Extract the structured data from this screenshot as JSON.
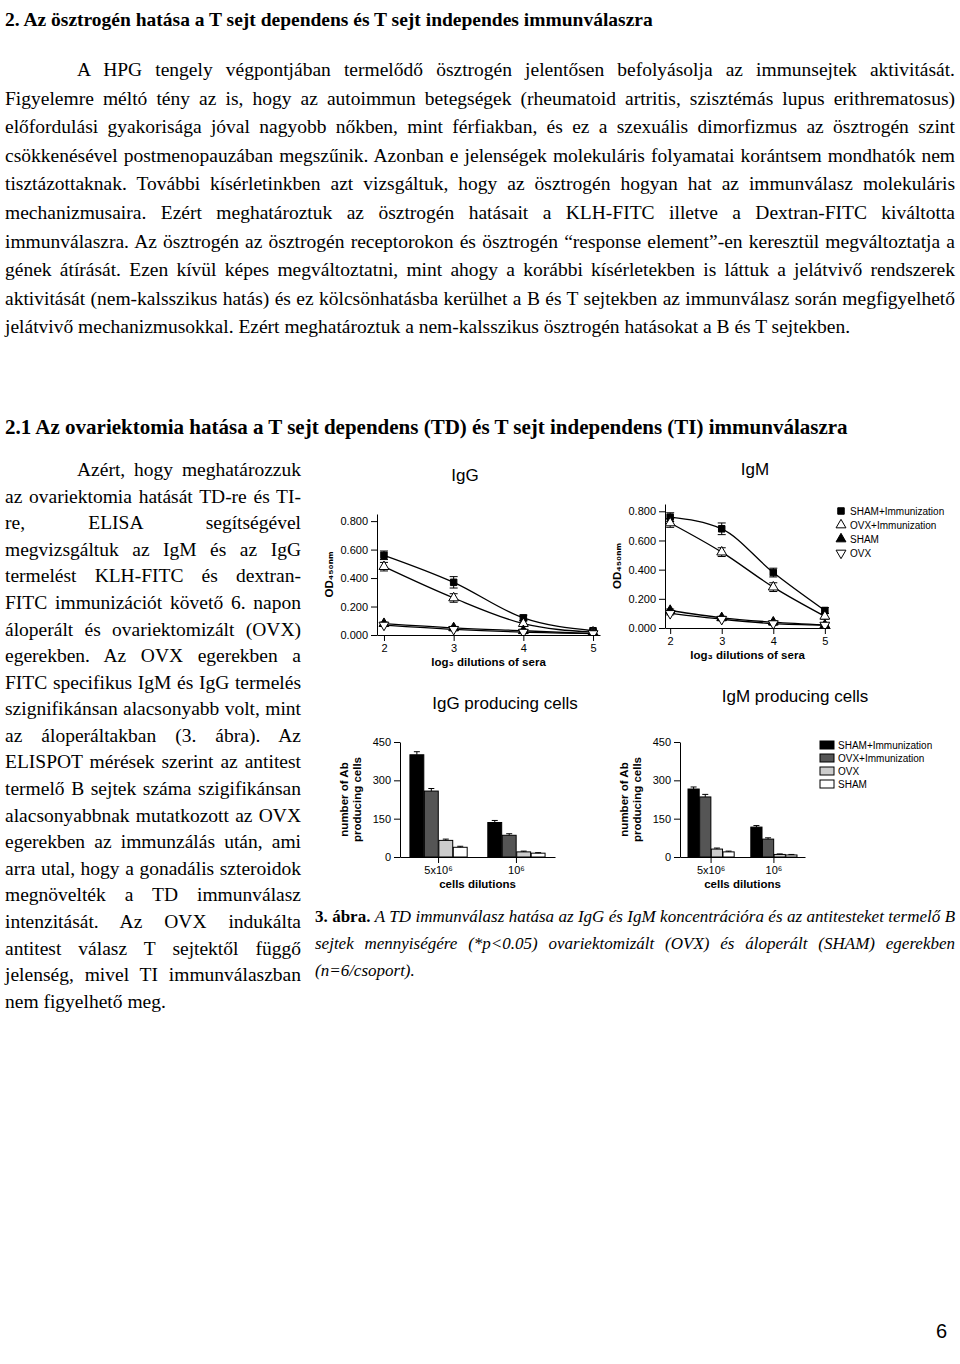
{
  "page": {
    "heading": "2. Az ösztrogén hatása a T sejt dependens és T sejt independes immunválaszra",
    "intro": "A HPG tengely végpontjában termelődő ösztrogén jelentősen befolyásolja az immunsejtek aktivitását. Figyelemre méltó tény az is, hogy az autoimmun betegségek (rheumatoid artritis, szisztémás lupus erithrematosus) előfordulási gyakorisága jóval nagyobb nőkben, mint férfiakban, és ez a szexuális dimorfizmus az ösztrogén szint csökkenésével postmenopauzában megszűnik. Azonban e jelenségek molekuláris folyamatai korántsem mondhatók nem tisztázottaknak. További kísérletinkben azt vizsgáltuk, hogy az ösztrogén hogyan hat az immunválasz molekuláris mechanizmusaira. Ezért meghatároztuk az ösztrogén hatásait a KLH-FITC illetve a Dextran-FITC kiváltotta immunválaszra. Az ösztrogén az ösztrogén receptorokon és ösztrogén “response element”-en keresztül megváltoztatja a gének átírását. Ezen kívül képes megváltoztatni, mint ahogy a korábbi kísérletekben is láttuk a jelátvivő rendszerek aktivitását (nem-kalsszikus hatás) és ez kölcsönhatásba kerülhet a B és T sejtekben az immunválasz során megfigyelhető jelátvivő mechanizmusokkal. Ezért meghatároztuk a nem-kalsszikus ösztrogén hatásokat a B és T sejtekben.",
    "section_heading": "2.1 Az ovariektomia hatása a T sejt dependens (TD) és T sejt independens (TI) immunválaszra",
    "body": "Azért, hogy meghatározzuk az ovariektomia hatását TD-re és TI-re, ELISA segítségével megvizsgáltuk az IgM és az IgG termelést KLH-FITC és dextran-FITC immunizációt követő 6. napon áloperált és ovariektomizált (OVX) egerekben. Az OVX egerekben a FITC specifikus IgM és IgG termelés szignifikánsan alacsonyabb volt, mint az áloperáltakban (3. ábra). Az ELISPOT mérések szerint az antitest termelő B sejtek száma szigifikánsan alacsonyabbnak mutatkozott az OVX egerekben az immunzálás után, ami arra utal, hogy a gonadális szteroidok megnövelték a TD immunválasz intenzitását. Az OVX indukálta antitest válasz T sejtektől függő jelenség, mivel TI immunválaszban nem figyelhető meg.",
    "page_number": 6
  },
  "figure": {
    "caption_label": "3. ábra.",
    "caption": "A TD immunválasz hatása az IgG és IgM koncentrációra és az antitesteket termelő B sejtek mennyiségére (*p<0.05) ovariektomizált (OVX) és áloperált (SHAM) egerekben (n=6/csoport)."
  },
  "chart_data": [
    {
      "type": "line",
      "title": "IgG",
      "x_label": "log₃ dilutions of sera",
      "y_label": "OD₄₅₀ₙₘ",
      "x": [
        2,
        3,
        4,
        5
      ],
      "xlim": [
        1.9,
        5.1
      ],
      "xticks": [
        2,
        3,
        4,
        5
      ],
      "ylim": [
        0,
        0.85
      ],
      "yticks": [
        {
          "value": 0,
          "label": "0.000"
        },
        {
          "value": 0.2,
          "label": "0.200"
        },
        {
          "value": 0.4,
          "label": "0.400"
        },
        {
          "value": 0.6,
          "label": "0.600"
        },
        {
          "value": 0.8,
          "label": "0.800"
        }
      ],
      "series": [
        {
          "color": "#000000",
          "marker": "square",
          "values": [
            0.56,
            0.37,
            0.12,
            0.03
          ],
          "errors": [
            0.03,
            0.04,
            0.02,
            0.01
          ]
        },
        {
          "color": "#000000",
          "marker": "triangle-open",
          "values": [
            0.48,
            0.26,
            0.08,
            0.02
          ],
          "errors": [
            0.03,
            0.03,
            0.02,
            0.01
          ]
        },
        {
          "color": "#000000",
          "marker": "triangle",
          "values": [
            0.08,
            0.05,
            0.03,
            0.01
          ],
          "errors": [
            0.01,
            0.01,
            0.01,
            0.01
          ]
        },
        {
          "color": "#000000",
          "marker": "triangle-down-open",
          "values": [
            0.07,
            0.04,
            0.02,
            0.01
          ],
          "errors": [
            0.01,
            0.01,
            0.01,
            0.01
          ]
        }
      ]
    },
    {
      "type": "line",
      "title": "IgM",
      "x_label": "log₃ dilutions of sera",
      "y_label": "OD₄₅₀ₙₘ",
      "x": [
        2,
        3,
        4,
        5
      ],
      "xlim": [
        1.9,
        5.1
      ],
      "xticks": [
        2,
        3,
        4,
        5
      ],
      "ylim": [
        0,
        0.85
      ],
      "yticks": [
        {
          "value": 0,
          "label": "0.000"
        },
        {
          "value": 0.2,
          "label": "0.200"
        },
        {
          "value": 0.4,
          "label": "0.400"
        },
        {
          "value": 0.6,
          "label": "0.600"
        },
        {
          "value": 0.8,
          "label": "0.800"
        }
      ],
      "legend": "right",
      "series": [
        {
          "name": "SHAM+Immunization",
          "color": "#000000",
          "marker": "square",
          "values": [
            0.76,
            0.68,
            0.38,
            0.12
          ],
          "errors": [
            0.03,
            0.04,
            0.03,
            0.02
          ]
        },
        {
          "name": "OVX+Immunization",
          "color": "#000000",
          "marker": "triangle-open",
          "values": [
            0.72,
            0.52,
            0.28,
            0.08
          ],
          "errors": [
            0.03,
            0.03,
            0.03,
            0.02
          ]
        },
        {
          "name": "SHAM",
          "color": "#000000",
          "marker": "triangle",
          "values": [
            0.12,
            0.07,
            0.04,
            0.02
          ],
          "errors": [
            0.01,
            0.01,
            0.01,
            0.01
          ]
        },
        {
          "name": "OVX",
          "color": "#000000",
          "marker": "triangle-down-open",
          "values": [
            0.1,
            0.06,
            0.03,
            0.02
          ],
          "errors": [
            0.01,
            0.01,
            0.01,
            0.01
          ]
        }
      ]
    },
    {
      "type": "bar",
      "title": "IgG producing cells",
      "x_label": "cells dilutions",
      "y_label": "number of Ab producing cells",
      "categories": [
        "5x10⁶",
        "10⁶"
      ],
      "ylim": [
        0,
        450
      ],
      "yticks": [
        0,
        150,
        300,
        450
      ],
      "series": [
        {
          "color": "#000000",
          "values": [
            400,
            135
          ],
          "errors": [
            12,
            8
          ]
        },
        {
          "color": "#555555",
          "values": [
            258,
            85
          ],
          "errors": [
            10,
            6
          ]
        },
        {
          "color": "#cccccc",
          "values": [
            65,
            20
          ],
          "errors": [
            5,
            3
          ]
        },
        {
          "color": "#ffffff",
          "values": [
            38,
            15
          ],
          "errors": [
            4,
            2
          ]
        }
      ]
    },
    {
      "type": "bar",
      "title": "IgM producing cells",
      "x_label": "cells dilutions",
      "y_label": "number of Ab producing cells",
      "categories": [
        "5x10⁶",
        "10⁶"
      ],
      "ylim": [
        0,
        450
      ],
      "yticks": [
        0,
        150,
        300,
        450
      ],
      "legend": "right",
      "series": [
        {
          "name": "SHAM+Immunization",
          "color": "#000000",
          "values": [
            266,
            117
          ],
          "errors": [
            8,
            6
          ]
        },
        {
          "name": "OVX+Immunization",
          "color": "#555555",
          "values": [
            235,
            70
          ],
          "errors": [
            10,
            5
          ]
        },
        {
          "name": "OVX",
          "color": "#cccccc",
          "values": [
            31,
            10
          ],
          "errors": [
            4,
            2
          ]
        },
        {
          "name": "SHAM",
          "color": "#ffffff",
          "values": [
            20,
            8
          ],
          "errors": [
            3,
            2
          ]
        }
      ]
    }
  ]
}
